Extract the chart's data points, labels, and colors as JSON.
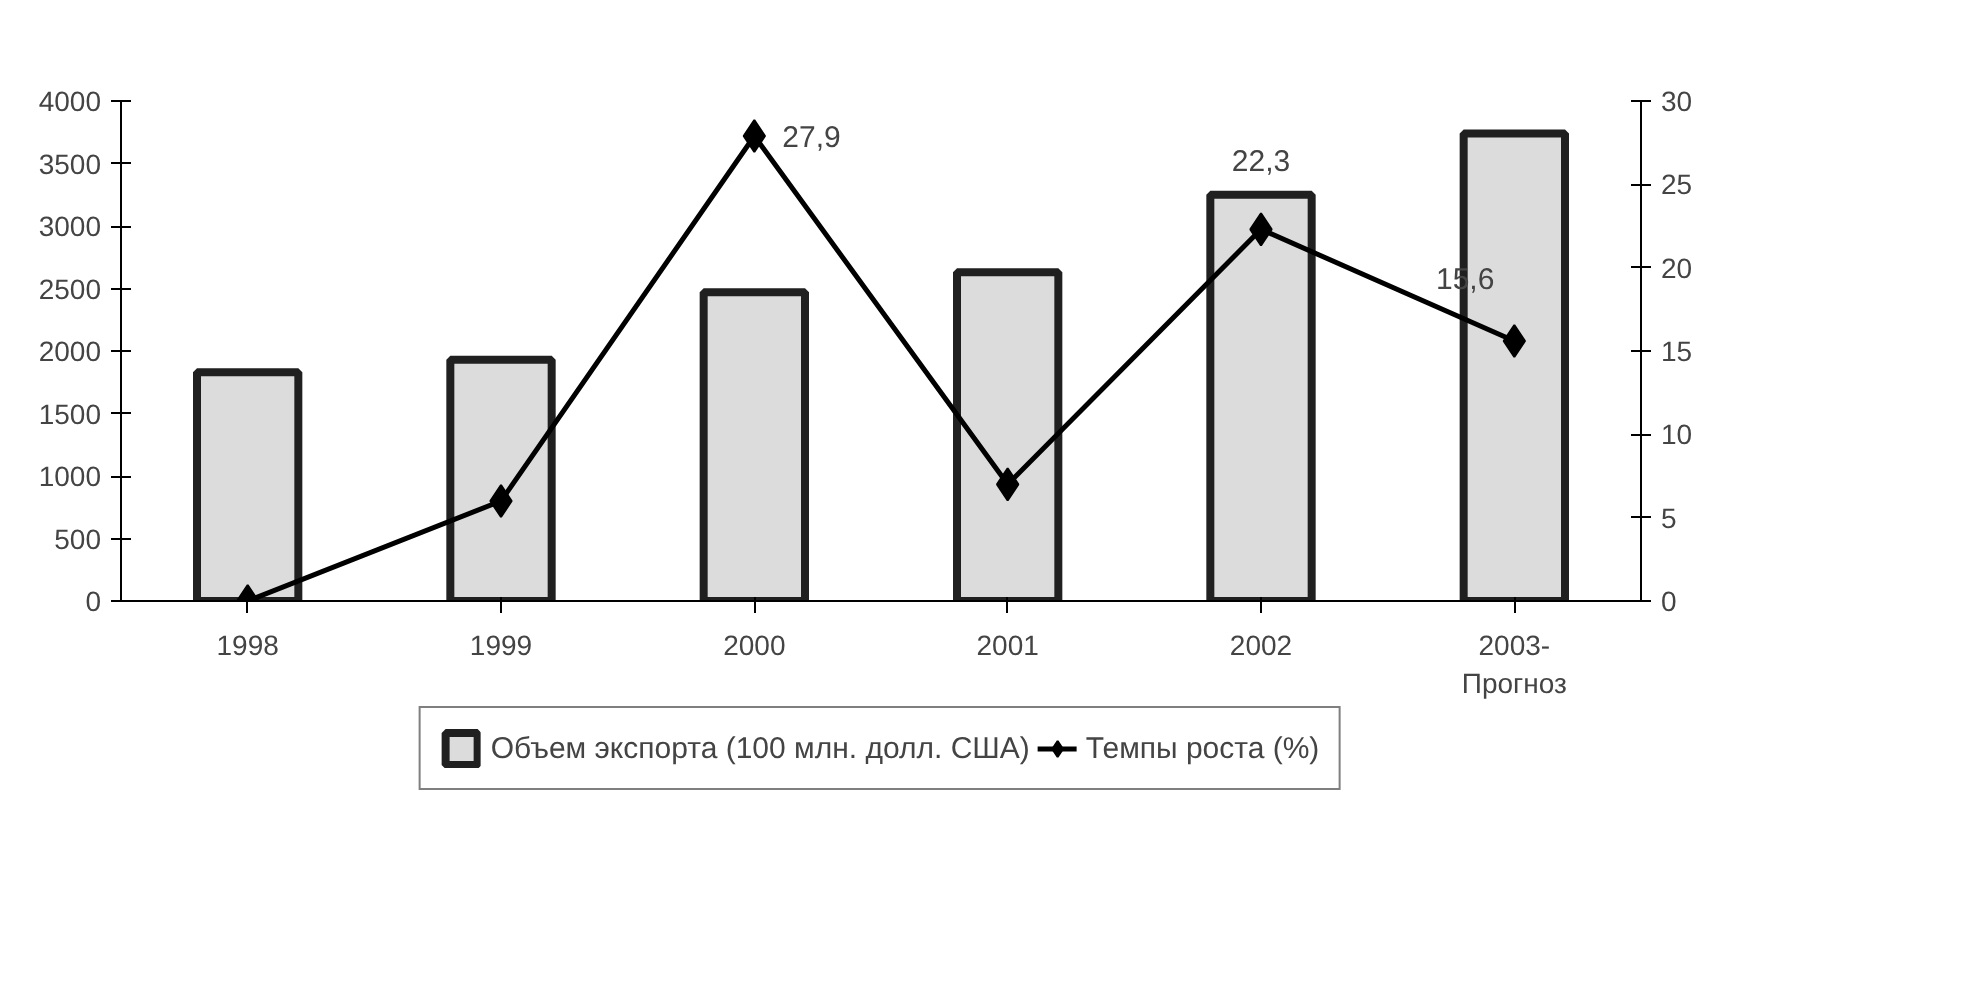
{
  "chart_data": {
    "type": "bar",
    "categories": [
      "1998",
      "1999",
      "2000",
      "2001",
      "2002",
      "2003-\nПрогноз"
    ],
    "series": [
      {
        "name": "Объем экспорта (100 млн. долл. США)",
        "color": "#dcdcdc",
        "values": [
          1830,
          1930,
          2470,
          2630,
          3250,
          3740
        ]
      },
      {
        "name": "Темпы роста (%)",
        "type": "line",
        "axis": "y2",
        "color": "#000000",
        "marker": "diamond",
        "values": [
          0,
          6,
          27.9,
          7,
          22.3,
          15.6
        ],
        "value_labels": [
          null,
          null,
          "27,9",
          null,
          "22,3",
          "15,6"
        ]
      }
    ],
    "ylim": [
      0,
      4000
    ],
    "yticks": [
      0,
      500,
      1000,
      1500,
      2000,
      2500,
      3000,
      3500,
      4000
    ],
    "y2lim": [
      0,
      30
    ],
    "y2ticks": [
      0,
      5,
      10,
      15,
      20,
      25,
      30
    ],
    "grid": false,
    "legend": "bottom"
  }
}
